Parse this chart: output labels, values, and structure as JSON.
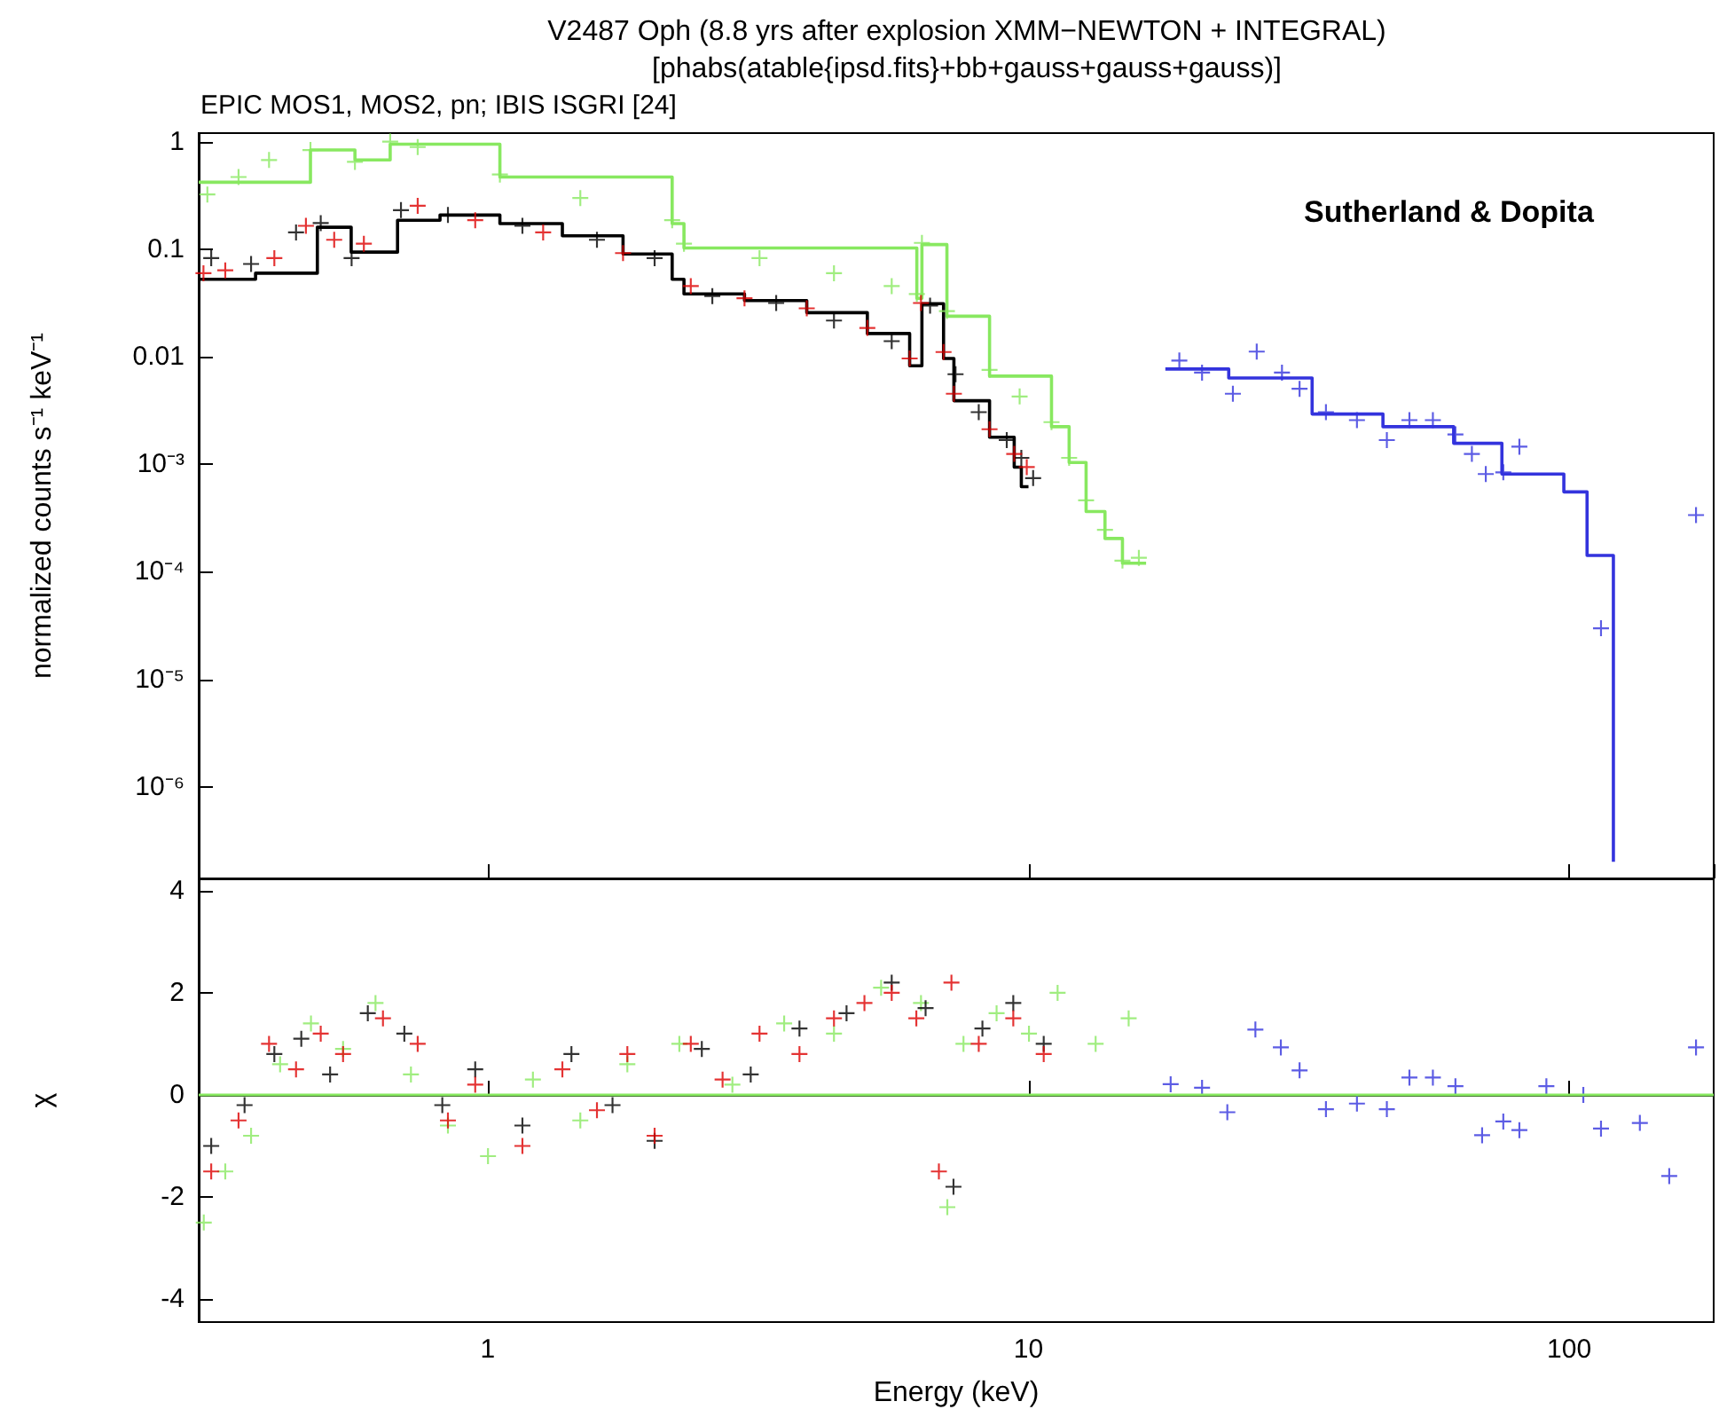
{
  "chart_data": [
    {
      "type": "scatter",
      "title": "V2487 Oph (8.8 yrs after explosion XMM−NEWTON + INTEGRAL)",
      "subtitle": "[phabs(atable{ipsd.fits}+bb+gauss+gauss+gauss)]",
      "ylabel": "normalized counts s⁻¹ keV⁻¹",
      "annotations": [
        "EPIC MOS1, MOS2, pn; IBIS ISGRI [24]",
        "Sutherland & Dopita"
      ],
      "log": "xy",
      "xlim": [
        0.292,
        185
      ],
      "ylim": [
        1.4e-07,
        1.21
      ],
      "tick_labels": "y",
      "yticks": [
        1,
        0.1,
        0.01,
        {
          "value": 0.001,
          "label": "10⁻³"
        },
        {
          "value": 0.0001,
          "label": "10⁻⁴"
        },
        {
          "value": 1e-05,
          "label": "10⁻⁵"
        },
        {
          "value": 1e-06,
          "label": "10⁻⁶"
        }
      ],
      "series": [
        {
          "marker": "cross",
          "color": "#88e860",
          "x": [
            0.303,
            0.346,
            0.394,
            0.47,
            0.568,
            0.66,
            0.742,
            1.053,
            1.483,
            2.193,
            2.306,
            3.181,
            4.368,
            5.585,
            6.216,
            6.352,
            7.066,
            8.472,
            9.63,
            11.03,
            11.89,
            12.78,
            13.85,
            14.92,
            16.0
          ],
          "values": [
            0.325,
            0.472,
            0.68,
            0.842,
            0.653,
            1.009,
            0.897,
            0.498,
            0.301,
            0.187,
            0.113,
            0.083,
            0.0601,
            0.0456,
            0.0385,
            0.115,
            0.0267,
            0.00757,
            0.00428,
            0.00247,
            0.00115,
            0.000462,
            0.000246,
            0.000127,
            0.000135
          ]
        },
        {
          "type": "step",
          "marker": "none",
          "color": "#88e860",
          "x": [
            0.292,
            0.47,
            0.568,
            0.66,
            1.053,
            2.193,
            2.306,
            6.216,
            6.352,
            7.066,
            8.472,
            11.03,
            11.89,
            12.78,
            13.85,
            14.92,
            16.5
          ],
          "values": [
            0.422,
            0.842,
            0.68,
            0.953,
            0.472,
            0.174,
            0.103,
            0.0351,
            0.111,
            0.0239,
            0.00662,
            0.00224,
            0.00104,
            0.000364,
            0.000204,
            0.00012,
            0.00012
          ]
        },
        {
          "marker": "cross",
          "color": "#000000",
          "x": [
            0.308,
            0.365,
            0.442,
            0.491,
            0.56,
            0.691,
            0.844,
            1.159,
            1.592,
            2.035,
            2.602,
            3.415,
            4.368,
            5.585,
            6.577,
            7.33,
            8.091,
            9.116,
            9.7,
            10.2
          ],
          "values": [
            0.083,
            0.0733,
            0.144,
            0.176,
            0.083,
            0.232,
            0.209,
            0.166,
            0.123,
            0.083,
            0.0368,
            0.0317,
            0.0218,
            0.014,
            0.03,
            0.0069,
            0.00306,
            0.00168,
            0.00115,
            0.000744
          ]
        },
        {
          "marker": "cross",
          "color": "#dd0000",
          "x": [
            0.298,
            0.327,
            0.403,
            0.461,
            0.52,
            0.59,
            0.742,
            0.948,
            1.266,
            1.779,
            2.374,
            2.984,
            3.89,
            5.035,
            6.029,
            6.327,
            6.965,
            7.279,
            8.472,
            9.41,
            9.927
          ],
          "values": [
            0.0601,
            0.0639,
            0.083,
            0.166,
            0.123,
            0.113,
            0.255,
            0.187,
            0.144,
            0.0924,
            0.0456,
            0.0351,
            0.0283,
            0.0186,
            0.00967,
            0.0317,
            0.0111,
            0.00454,
            0.00212,
            0.00125,
            0.000942
          ]
        },
        {
          "type": "step",
          "marker": "none",
          "color": "#000000",
          "x": [
            0.292,
            0.372,
            0.484,
            0.559,
            0.681,
            0.816,
            1.053,
            1.374,
            1.779,
            2.193,
            2.306,
            2.984,
            3.89,
            5.035,
            6.029,
            6.352,
            6.965,
            7.279,
            8.472,
            9.41,
            9.7,
            10.0
          ],
          "values": [
            0.0528,
            0.0601,
            0.161,
            0.0944,
            0.187,
            0.209,
            0.174,
            0.134,
            0.0908,
            0.0528,
            0.0385,
            0.0334,
            0.0258,
            0.0165,
            0.00826,
            0.0313,
            0.00967,
            0.00391,
            0.00179,
            0.000942,
            0.000619,
            0.000619
          ]
        },
        {
          "marker": "cross",
          "color": "#3333dd",
          "x": [
            19.01,
            20.94,
            23.88,
            26.43,
            29.43,
            31.72,
            35.49,
            40.5,
            46.0,
            50.64,
            55.96,
            61.6,
            66.07,
            70.1,
            75.53,
            80.88,
            114.5,
            171.6
          ],
          "values": [
            0.00924,
            0.00714,
            0.00454,
            0.0112,
            0.00714,
            0.00505,
            0.00306,
            0.00258,
            0.00168,
            0.00258,
            0.00258,
            0.0019,
            0.00125,
            0.000812,
            0.000842,
            0.00146,
            2.98e-05,
            0.000337
          ]
        },
        {
          "type": "step",
          "marker": "none",
          "color": "#3333dd",
          "x": [
            17.91,
            23.46,
            33.46,
            45.24,
            61.14,
            75.08,
            97.74,
            107.9,
            120.7
          ],
          "values": [
            0.00771,
            0.00636,
            0.00294,
            0.00224,
            0.00157,
            0.000812,
            0.000554,
            0.000142,
            2e-07
          ]
        }
      ]
    },
    {
      "type": "scatter",
      "xlabel": "Energy (keV)",
      "ylabel": "χ",
      "log": "x",
      "xlim": [
        0.292,
        185
      ],
      "xticks": [
        1,
        10,
        100
      ],
      "ylim": [
        -4.45,
        4.24
      ],
      "yticks": [
        -4,
        -2,
        0,
        2,
        4
      ],
      "ref_lines": [
        {
          "axis": "y",
          "value": 0,
          "color": "#88e860"
        }
      ],
      "series": [
        {
          "marker": "cross",
          "color": "#88e860",
          "x": [
            0.2984,
            0.327,
            0.365,
            0.413,
            0.471,
            0.54,
            0.62,
            0.721,
            0.844,
            1.001,
            1.212,
            1.483,
            1.812,
            2.261,
            2.834,
            3.533,
            4.368,
            5.339,
            6.327,
            7.078,
            7.582,
            8.73,
            10.02,
            11.32,
            13.31,
            15.32
          ],
          "values": [
            -2.5,
            -1.5,
            -0.8,
            0.6,
            1.4,
            0.9,
            1.8,
            0.4,
            -0.6,
            -1.2,
            0.3,
            -0.5,
            0.6,
            1.0,
            0.2,
            1.4,
            1.2,
            2.1,
            1.8,
            -2.2,
            1.0,
            1.6,
            1.2,
            2.0,
            1.0,
            1.5
          ]
        },
        {
          "marker": "cross",
          "color": "#000000",
          "x": [
            0.308,
            0.355,
            0.403,
            0.452,
            0.511,
            0.6,
            0.701,
            0.824,
            0.948,
            1.159,
            1.428,
            1.701,
            2.035,
            2.488,
            3.064,
            3.771,
            4.608,
            5.585,
            6.452,
            7.266,
            8.219,
            9.373,
            10.67
          ],
          "values": [
            -1.0,
            -0.2,
            0.8,
            1.1,
            0.4,
            1.6,
            1.2,
            -0.2,
            0.5,
            -0.6,
            0.8,
            -0.2,
            -0.9,
            0.9,
            0.4,
            1.3,
            1.6,
            2.2,
            1.7,
            -1.8,
            1.3,
            1.8,
            1.0
          ]
        },
        {
          "marker": "cross",
          "color": "#dd0000",
          "x": [
            0.308,
            0.346,
            0.394,
            0.442,
            0.491,
            0.54,
            0.64,
            0.742,
            0.844,
            0.948,
            1.159,
            1.374,
            1.592,
            1.812,
            2.035,
            2.374,
            2.718,
            3.181,
            3.771,
            4.368,
            4.973,
            5.585,
            6.203,
            6.828,
            7.203,
            8.091,
            9.373,
            10.67
          ],
          "values": [
            -1.5,
            -0.5,
            1.0,
            0.5,
            1.2,
            0.8,
            1.5,
            1.0,
            -0.5,
            0.2,
            -1.0,
            0.5,
            -0.3,
            0.8,
            -0.8,
            1.0,
            0.3,
            1.2,
            0.8,
            1.5,
            1.8,
            2.0,
            1.5,
            -1.5,
            2.2,
            1.0,
            1.5,
            0.8
          ]
        },
        {
          "marker": "cross",
          "color": "#3333dd",
          "x": [
            18.32,
            20.94,
            23.32,
            26.28,
            29.29,
            31.72,
            35.49,
            40.5,
            46.0,
            50.64,
            55.96,
            61.6,
            69.01,
            75.53,
            80.88,
            90.73,
            106.2,
            114.5,
            135.1,
            153.1,
            171.6
          ],
          "values": [
            0.21,
            0.14,
            -0.34,
            1.28,
            0.93,
            0.48,
            -0.28,
            -0.17,
            -0.28,
            0.34,
            0.34,
            0.17,
            -0.79,
            -0.52,
            -0.69,
            0.17,
            0,
            -0.66,
            -0.55,
            -1.59,
            0.93
          ]
        }
      ]
    }
  ]
}
